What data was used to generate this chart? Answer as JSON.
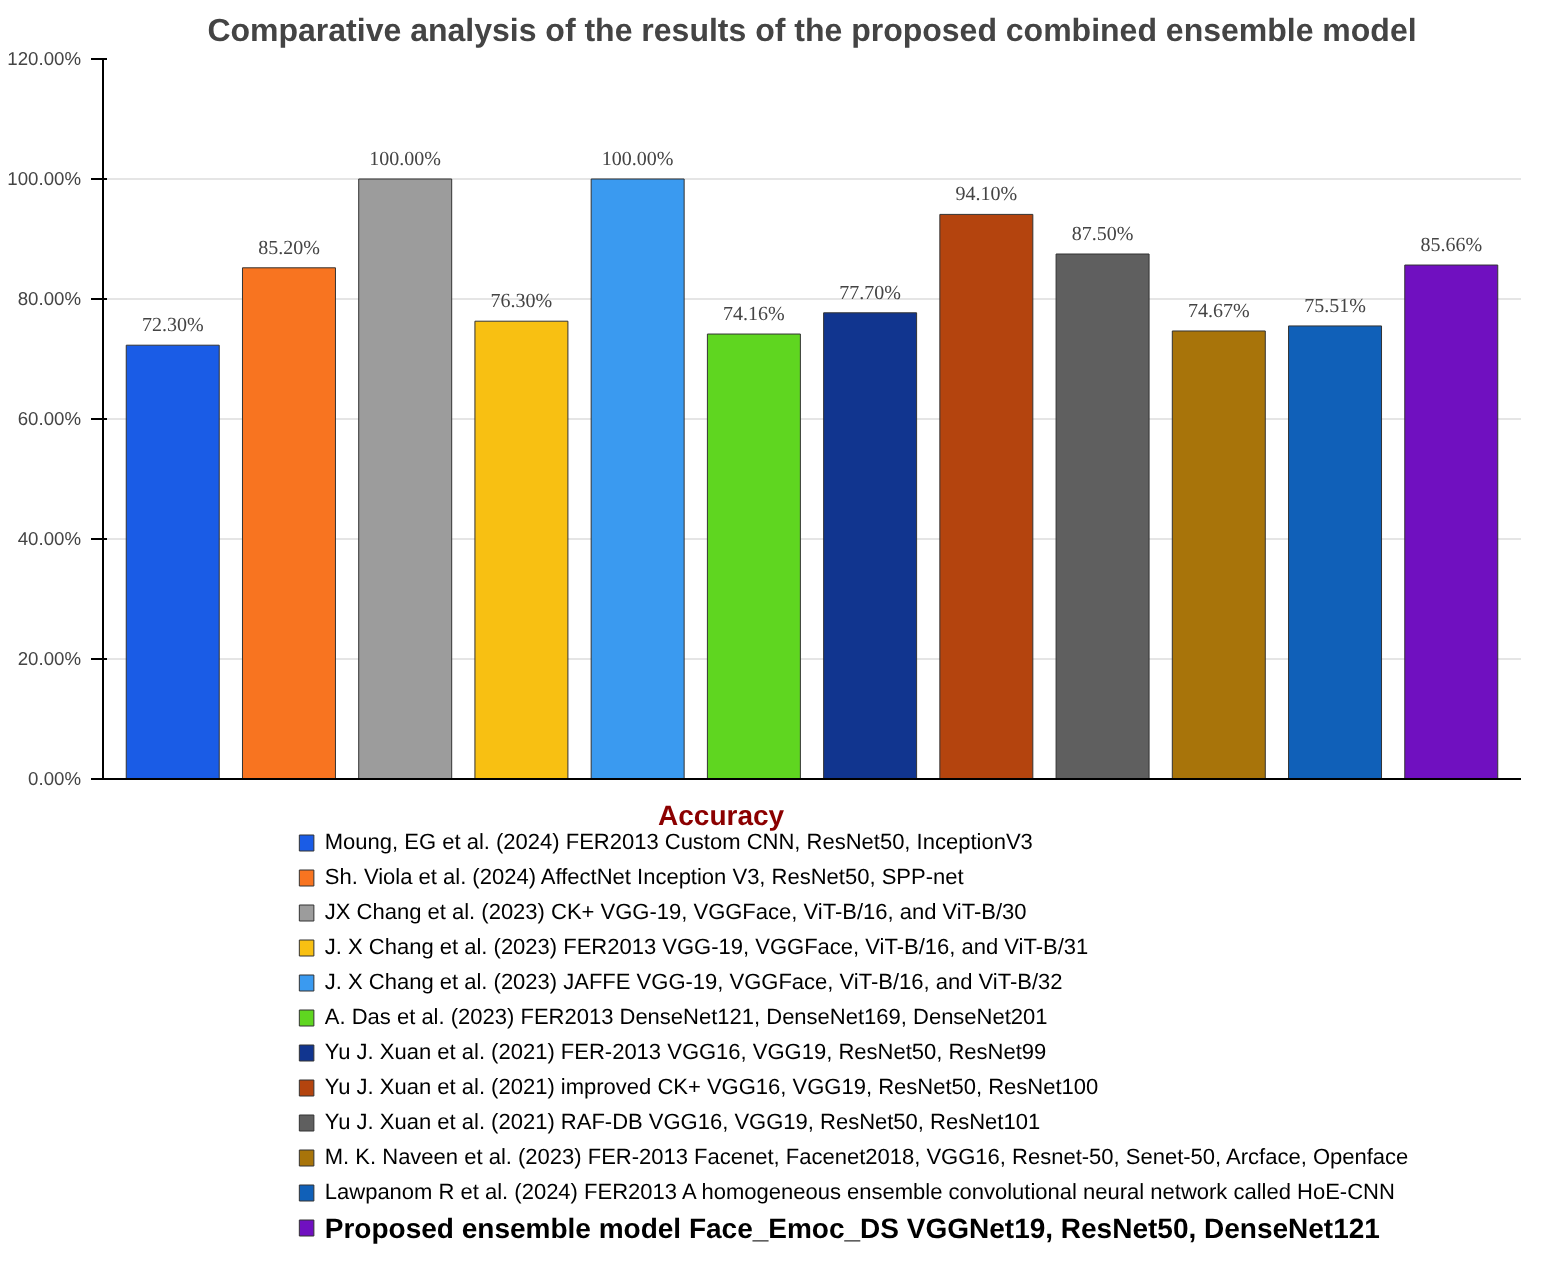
{
  "chart_data": {
    "type": "bar",
    "title": "Comparative analysis of the results of the proposed combined ensemble model",
    "legend_title": "Accuracy",
    "categories": [
      null,
      null,
      null,
      null,
      null,
      null,
      null,
      null,
      null,
      null,
      null,
      null
    ],
    "series": [
      {
        "name": "Moung, EG et al. (2024)  FER2013 Custom CNN, ResNet50, InceptionV3",
        "color": "#1a5ce6",
        "values": [
          72.3,
          null,
          null,
          null,
          null,
          null,
          null,
          null,
          null,
          null,
          null,
          null
        ],
        "value_labels": [
          "72.30%",
          null,
          null,
          null,
          null,
          null,
          null,
          null,
          null,
          null,
          null,
          null
        ]
      },
      {
        "name": "Sh. Viola et al. (2024) AffectNet Inception V3, ResNet50, SPP-net",
        "color": "#f87420",
        "values": [
          null,
          85.2,
          null,
          null,
          null,
          null,
          null,
          null,
          null,
          null,
          null,
          null
        ],
        "value_labels": [
          null,
          "85.20%",
          null,
          null,
          null,
          null,
          null,
          null,
          null,
          null,
          null,
          null
        ]
      },
      {
        "name": "JX Chang et al. (2023) CK+ VGG-19, VGGFace, ViT-B/16, and ViT-B/30",
        "color": "#9c9c9c",
        "values": [
          null,
          null,
          100.0,
          null,
          null,
          null,
          null,
          null,
          null,
          null,
          null,
          null
        ],
        "value_labels": [
          null,
          null,
          "100.00%",
          null,
          null,
          null,
          null,
          null,
          null,
          null,
          null,
          null
        ]
      },
      {
        "name": "J. X Chang et al. (2023) FER2013 VGG-19, VGGFace, ViT-B/16, and ViT-B/31",
        "color": "#f8c012",
        "values": [
          null,
          null,
          null,
          76.3,
          null,
          null,
          null,
          null,
          null,
          null,
          null,
          null
        ],
        "value_labels": [
          null,
          null,
          null,
          "76.30%",
          null,
          null,
          null,
          null,
          null,
          null,
          null,
          null
        ]
      },
      {
        "name": "J. X Chang et al. (2023) JAFFE VGG-19, VGGFace, ViT-B/16, and ViT-B/32",
        "color": "#3a9af0",
        "values": [
          null,
          null,
          null,
          null,
          100.0,
          null,
          null,
          null,
          null,
          null,
          null,
          null
        ],
        "value_labels": [
          null,
          null,
          null,
          null,
          "100.00%",
          null,
          null,
          null,
          null,
          null,
          null,
          null
        ]
      },
      {
        "name": "A. Das et al. (2023) FER2013 DenseNet121, DenseNet169, DenseNet201",
        "color": "#5fd620",
        "values": [
          null,
          null,
          null,
          null,
          null,
          74.16,
          null,
          null,
          null,
          null,
          null,
          null
        ],
        "value_labels": [
          null,
          null,
          null,
          null,
          null,
          "74.16%",
          null,
          null,
          null,
          null,
          null,
          null
        ]
      },
      {
        "name": "Yu J. Xuan  et al. (2021) FER-2013 VGG16, VGG19, ResNet50, ResNet99",
        "color": "#11358f",
        "values": [
          null,
          null,
          null,
          null,
          null,
          null,
          77.7,
          null,
          null,
          null,
          null,
          null
        ],
        "value_labels": [
          null,
          null,
          null,
          null,
          null,
          null,
          "77.70%",
          null,
          null,
          null,
          null,
          null
        ]
      },
      {
        "name": "Yu J. Xuan  et al. (2021) improved CK+ VGG16, VGG19, ResNet50, ResNet100",
        "color": "#b4440e",
        "values": [
          null,
          null,
          null,
          null,
          null,
          null,
          null,
          94.1,
          null,
          null,
          null,
          null
        ],
        "value_labels": [
          null,
          null,
          null,
          null,
          null,
          null,
          null,
          "94.10%",
          null,
          null,
          null,
          null
        ]
      },
      {
        "name": "Yu J. Xuan  et al. (2021) RAF-DB VGG16, VGG19, ResNet50, ResNet101",
        "color": "#5f5f5f",
        "values": [
          null,
          null,
          null,
          null,
          null,
          null,
          null,
          null,
          87.5,
          null,
          null,
          null
        ],
        "value_labels": [
          null,
          null,
          null,
          null,
          null,
          null,
          null,
          null,
          "87.50%",
          null,
          null,
          null
        ]
      },
      {
        "name": "M. K. Naveen et al. (2023) FER-2013 Facenet, Facenet2018, VGG16, Resnet-50, Senet-50, Arcface, Openface",
        "color": "#a8740a",
        "values": [
          null,
          null,
          null,
          null,
          null,
          null,
          null,
          null,
          null,
          74.67,
          null,
          null
        ],
        "value_labels": [
          null,
          null,
          null,
          null,
          null,
          null,
          null,
          null,
          null,
          "74.67%",
          null,
          null
        ]
      },
      {
        "name": "Lawpanom R et al. (2024) FER2013 A homogeneous ensemble convolutional neural network called HoE-CNN",
        "color": "#1060b8",
        "values": [
          null,
          null,
          null,
          null,
          null,
          null,
          null,
          null,
          null,
          null,
          75.51,
          null
        ],
        "value_labels": [
          null,
          null,
          null,
          null,
          null,
          null,
          null,
          null,
          null,
          null,
          "75.51%",
          null
        ]
      },
      {
        "name": "Proposed ensemble model Face_Emoc_DS VGGNet19, ResNet50, DenseNet121",
        "color": "#7010c0",
        "values": [
          null,
          null,
          null,
          null,
          null,
          null,
          null,
          null,
          null,
          null,
          null,
          85.66
        ],
        "value_labels": [
          null,
          null,
          null,
          null,
          null,
          null,
          null,
          null,
          null,
          null,
          null,
          "85.66%"
        ]
      }
    ],
    "ylim": [
      0,
      120
    ],
    "yticks": [
      {
        "value": 0,
        "label": "0.00%"
      },
      {
        "value": 20,
        "label": "20.00%"
      },
      {
        "value": 40,
        "label": "40.00%"
      },
      {
        "value": 60,
        "label": "60.00%"
      },
      {
        "value": 80,
        "label": "80.00%"
      },
      {
        "value": 100,
        "label": "100.00%"
      },
      {
        "value": 120,
        "label": "120.00%"
      }
    ],
    "grid": "y",
    "legend": "bottom"
  }
}
